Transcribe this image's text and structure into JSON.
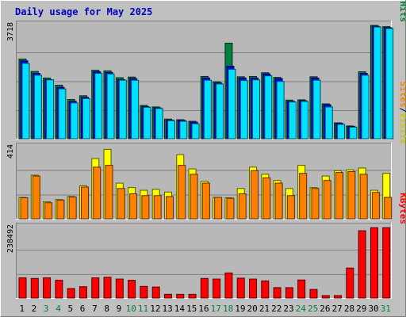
{
  "chart_data": {
    "type": "bar",
    "title": "Daily usage for May 2025",
    "categories": [
      "1",
      "2",
      "3",
      "4",
      "5",
      "6",
      "7",
      "8",
      "9",
      "10",
      "11",
      "12",
      "13",
      "14",
      "15",
      "16",
      "17",
      "18",
      "19",
      "20",
      "21",
      "22",
      "23",
      "24",
      "25",
      "26",
      "27",
      "28",
      "29",
      "30",
      "31"
    ],
    "weekend_days": [
      "3",
      "4",
      "10",
      "11",
      "17",
      "18",
      "24",
      "25",
      "31"
    ],
    "panels": [
      {
        "id": "hits",
        "max_label": "3718",
        "ylim": [
          0,
          3718
        ],
        "series": [
          {
            "name": "Hits",
            "color": "#008040",
            "values": [
              2560,
              2160,
              1950,
              1720,
              1260,
              1380,
              2200,
              2180,
              1960,
              1980,
              1070,
              1020,
              630,
              610,
              560,
              2000,
              1830,
              3070,
              1990,
              2000,
              2120,
              1970,
              1240,
              1250,
              1990,
              1120,
              510,
              410,
              2150,
              3640,
              3600
            ]
          },
          {
            "name": "Files",
            "color": "#0000ff",
            "values": [
              2500,
              2100,
              1900,
              1650,
              1200,
              1330,
              2150,
              2130,
              1900,
              1930,
              1030,
              990,
              600,
              590,
              530,
              1950,
              1790,
              2330,
              1950,
              1950,
              2080,
              1930,
              1200,
              1220,
              1950,
              1090,
              490,
              390,
              2100,
              3610,
              3570
            ]
          },
          {
            "name": "Pages",
            "color": "#00e0ff",
            "values": [
              2420,
              2040,
              1890,
              1600,
              1150,
              1290,
              2100,
              2080,
              1880,
              1880,
              1010,
              970,
              580,
              560,
              480,
              1880,
              1760,
              2230,
              1870,
              1890,
              2020,
              1840,
              1180,
              1200,
              1880,
              1020,
              460,
              370,
              2040,
              3590,
              3540
            ]
          }
        ],
        "legend": [
          {
            "text": "Hits",
            "color": "#008040"
          },
          {
            "text": "/",
            "color": "#000000"
          },
          {
            "text": "Files",
            "color": "#0000ff"
          },
          {
            "text": "/",
            "color": "#000000"
          },
          {
            "text": "Pages",
            "color": "#00c8c8"
          }
        ]
      },
      {
        "id": "visits",
        "max_label": "414",
        "ylim": [
          0,
          414
        ],
        "series": [
          {
            "name": "Visits",
            "color": "#ffff00",
            "values": [
              120,
              245,
              95,
              108,
              125,
              185,
              338,
              390,
              200,
              175,
              160,
              165,
              150,
              360,
              280,
              210,
              120,
              118,
              170,
              290,
              250,
              215,
              170,
              300,
              175,
              240,
              270,
              275,
              285,
              160,
              255
            ]
          },
          {
            "name": "Sites",
            "color": "#ff8000",
            "values": [
              118,
              240,
              90,
              104,
              122,
              178,
              290,
              300,
              170,
              140,
              130,
              130,
              125,
              300,
              250,
              200,
              120,
              115,
              140,
              270,
              230,
              200,
              130,
              255,
              170,
              215,
              260,
              265,
              250,
              148,
              120
            ]
          }
        ],
        "legend": [
          {
            "text": "Visits",
            "color": "#c8c800"
          },
          {
            "text": "/",
            "color": "#000000"
          },
          {
            "text": "Sites",
            "color": "#ff8000"
          }
        ]
      },
      {
        "id": "kbytes",
        "max_label": "238492",
        "ylim": [
          0,
          238492
        ],
        "series": [
          {
            "name": "KBytes",
            "color": "#ff0000",
            "values": [
              66000,
              64000,
              66000,
              58000,
              31000,
              37000,
              66000,
              68000,
              62000,
              58000,
              38000,
              36000,
              12000,
              12000,
              12000,
              64000,
              62000,
              82000,
              65000,
              62000,
              56000,
              34000,
              34000,
              59000,
              28000,
              8000,
              8000,
              98000,
              220000,
              230000,
              230000
            ]
          }
        ],
        "legend": [
          {
            "text": "KBytes",
            "color": "#ff0000"
          }
        ]
      }
    ]
  }
}
